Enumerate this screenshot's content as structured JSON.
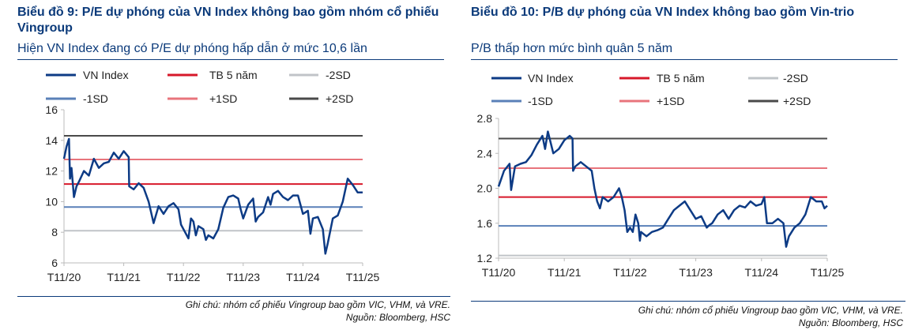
{
  "panels": [
    {
      "title": "Biểu đồ 9: P/E dự phóng của VN Index không bao gồm nhóm cổ phiếu Vingroup",
      "subtitle": "Hiện VN Index đang có P/E dự phóng hấp dẫn ở mức 10,6 lần",
      "note": "Ghi chú: nhóm cổ phiếu Vingroup bao gồm VIC, VHM, và VRE.",
      "source": "Nguồn: Bloomberg, HSC"
    },
    {
      "title": "Biểu đồ 10: P/B dự phóng của VN Index không bao gồm Vin-trio",
      "subtitle": "P/B thấp hơn mức bình quân 5 năm",
      "note": "Ghi chú: nhóm cổ phiếu Vingroup bao gồm VIC, VHM, và VRE.",
      "source": "Nguồn: Bloomberg, HSC"
    }
  ],
  "chart_data": [
    {
      "type": "line",
      "title": "P/E dự phóng của VN Index không bao gồm nhóm cổ phiếu Vingroup",
      "x_unit": "months since T11/20",
      "xticks": [
        "T11/20",
        "T11/21",
        "T11/22",
        "T11/23",
        "T11/24",
        "T11/25"
      ],
      "ylim": [
        6,
        16
      ],
      "yticks": [
        "6",
        "8",
        "10",
        "12",
        "14",
        "16"
      ],
      "legend": [
        "VN Index",
        "TB 5 năm",
        "-2SD",
        "-1SD",
        "+1SD",
        "+2SD"
      ],
      "colors": {
        "VN Index": "#0d3b85",
        "TB 5 năm": "#d7182a",
        "-2SD": "#c0c4c8",
        "-1SD": "#5a80b8",
        "+1SD": "#e8747c",
        "+2SD": "#4a4a4a"
      },
      "reference_lines": {
        "TB 5 năm": 11.15,
        "-2SD": 8.1,
        "-1SD": 9.65,
        "+1SD": 12.75,
        "+2SD": 14.3
      },
      "series": [
        {
          "name": "VN Index",
          "x": [
            0,
            0.5,
            1,
            1.2,
            1.5,
            2,
            2.5,
            3,
            4,
            5,
            6,
            7,
            8,
            9,
            10,
            11,
            12,
            13,
            13.1,
            14,
            15,
            16,
            17,
            18,
            19,
            20,
            21,
            22,
            23,
            23.5,
            24,
            25,
            25.5,
            26,
            26.5,
            27,
            28,
            28.5,
            29,
            30,
            31,
            32,
            33,
            34,
            35,
            35.5,
            36,
            37,
            38,
            38.5,
            39,
            40,
            41,
            41.5,
            42,
            43,
            44,
            45,
            46,
            47,
            48,
            49,
            49.5,
            50,
            51,
            52,
            52.5,
            53,
            54,
            55,
            56,
            57,
            58,
            59,
            60
          ],
          "y": [
            12.8,
            13.6,
            14.1,
            11.5,
            12.2,
            10.3,
            11,
            11.3,
            12,
            11.7,
            12.8,
            12.2,
            12.5,
            12.6,
            13.2,
            12.8,
            13.3,
            12.9,
            11,
            10.8,
            11.2,
            10.9,
            10,
            8.6,
            9.7,
            9.2,
            9.7,
            9.9,
            9.5,
            8.5,
            8.2,
            7.6,
            8.9,
            8.7,
            7.8,
            8.4,
            8.2,
            7.5,
            7.8,
            7.6,
            8.2,
            9.6,
            10.3,
            10.4,
            10.2,
            9.5,
            8.9,
            9.8,
            10.2,
            8.7,
            9,
            9.3,
            10.3,
            9.8,
            10.5,
            10.7,
            10.3,
            10.1,
            10.4,
            10.4,
            9.2,
            9.4,
            7.9,
            8.9,
            9,
            8.2,
            6.6,
            7.3,
            8.9,
            9.1,
            10,
            11.5,
            11.1,
            10.6,
            10.6
          ]
        }
      ]
    },
    {
      "type": "line",
      "title": "P/B dự phóng của VN Index không bao gồm Vin-trio",
      "x_unit": "months since T11/20",
      "xticks": [
        "T11/20",
        "T11/21",
        "T11/22",
        "T11/23",
        "T11/24",
        "T11/25"
      ],
      "ylim": [
        1.2,
        2.8
      ],
      "yticks": [
        "1.2",
        "1.6",
        "2.0",
        "2.4",
        "2.8"
      ],
      "legend": [
        "VN Index",
        "TB 5 năm",
        "-2SD",
        "-1SD",
        "+1SD",
        "+2SD"
      ],
      "colors": {
        "VN Index": "#0d3b85",
        "TB 5 năm": "#d7182a",
        "-2SD": "#c0c4c8",
        "-1SD": "#5a80b8",
        "+1SD": "#e8747c",
        "+2SD": "#4a4a4a"
      },
      "reference_lines": {
        "TB 5 năm": 1.9,
        "-2SD": 1.23,
        "-1SD": 1.57,
        "+1SD": 2.23,
        "+2SD": 2.57
      },
      "series": [
        {
          "name": "VN Index",
          "x": [
            0,
            1,
            2,
            2.3,
            3,
            4,
            5,
            6,
            7,
            8,
            8.5,
            9,
            10,
            11,
            12,
            13,
            13.5,
            13.6,
            14,
            15,
            16,
            17,
            17.5,
            18,
            18.5,
            19,
            20,
            21,
            22,
            22.5,
            23,
            23.5,
            24,
            24.5,
            25,
            25.5,
            25.8,
            26,
            27,
            28,
            29,
            30,
            31,
            32,
            33,
            34,
            35,
            36,
            37,
            38,
            38.5,
            39,
            40,
            41,
            42,
            43,
            44,
            45,
            46,
            47,
            48,
            48.5,
            49,
            50,
            51,
            52,
            52.5,
            53,
            54,
            55,
            56,
            57,
            58,
            59,
            59.5,
            60
          ],
          "y": [
            2.02,
            2.2,
            2.28,
            1.98,
            2.25,
            2.28,
            2.3,
            2.38,
            2.5,
            2.6,
            2.45,
            2.65,
            2.4,
            2.45,
            2.55,
            2.6,
            2.57,
            2.2,
            2.25,
            2.3,
            2.25,
            2.2,
            2.0,
            1.85,
            1.77,
            1.9,
            1.85,
            1.9,
            2.0,
            1.9,
            1.75,
            1.5,
            1.55,
            1.5,
            1.7,
            1.6,
            1.4,
            1.5,
            1.45,
            1.5,
            1.52,
            1.55,
            1.65,
            1.75,
            1.8,
            1.85,
            1.75,
            1.65,
            1.68,
            1.55,
            1.58,
            1.6,
            1.7,
            1.75,
            1.65,
            1.75,
            1.8,
            1.78,
            1.85,
            1.8,
            1.82,
            1.9,
            1.6,
            1.6,
            1.65,
            1.6,
            1.33,
            1.45,
            1.55,
            1.6,
            1.7,
            1.9,
            1.85,
            1.85,
            1.77,
            1.8
          ]
        }
      ]
    }
  ]
}
